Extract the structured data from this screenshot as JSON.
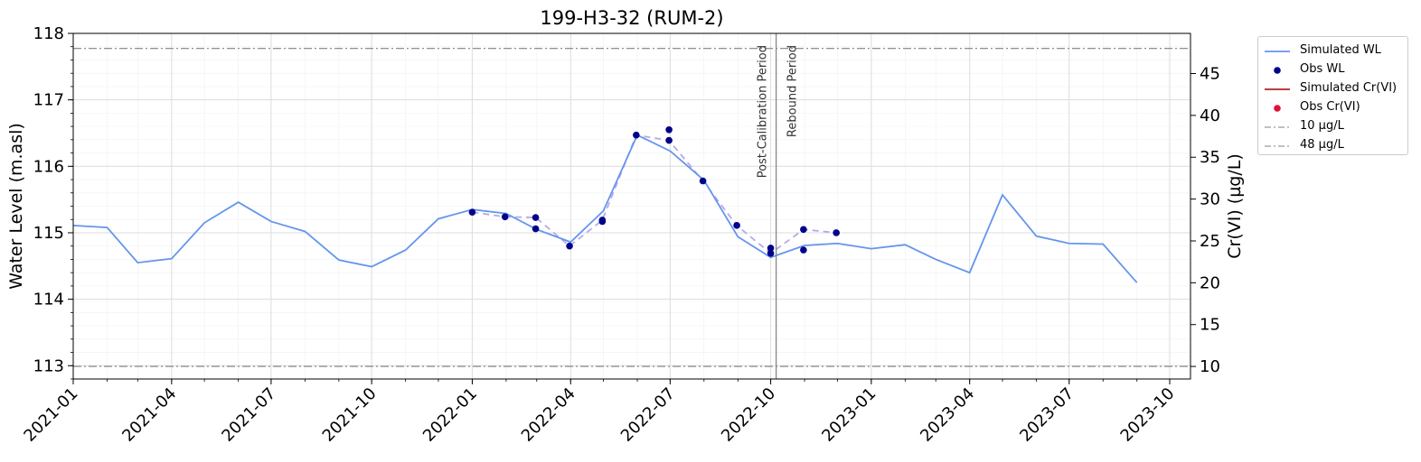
{
  "chart_data": {
    "type": "line",
    "title": "199-H3-32 (RUM-2)",
    "ylabel": "Water Level (m.asl)",
    "ylabel_right": "Cr(VI) (µg/L)",
    "xlim": [
      "2021-01-01",
      "2023-10-20"
    ],
    "ylim": [
      112.8,
      118.0
    ],
    "ylim_right": [
      8.5,
      49.8
    ],
    "x_ticks": [
      "2021-01",
      "2021-04",
      "2021-07",
      "2021-10",
      "2022-01",
      "2022-04",
      "2022-07",
      "2022-10",
      "2023-01",
      "2023-04",
      "2023-07",
      "2023-10"
    ],
    "y_ticks": [
      113,
      114,
      115,
      116,
      117,
      118
    ],
    "y_ticks_right": [
      10,
      15,
      20,
      25,
      30,
      35,
      40,
      45
    ],
    "grid": true,
    "legend_position": "outside-top-right",
    "series": [
      {
        "name": "Simulated WL",
        "color": "#6495ED",
        "x": [
          "2021-01-01",
          "2021-02-01",
          "2021-03-01",
          "2021-04-01",
          "2021-05-01",
          "2021-06-01",
          "2021-07-01",
          "2021-08-01",
          "2021-09-01",
          "2021-10-01",
          "2021-11-01",
          "2021-12-01",
          "2022-01-01",
          "2022-02-01",
          "2022-03-01",
          "2022-04-01",
          "2022-05-01",
          "2022-06-01",
          "2022-07-01",
          "2022-08-01",
          "2022-09-01",
          "2022-10-01",
          "2022-11-01",
          "2022-12-01",
          "2023-01-01",
          "2023-02-01",
          "2023-03-01",
          "2023-04-01",
          "2023-05-01",
          "2023-06-01",
          "2023-07-01",
          "2023-08-01",
          "2023-09-01"
        ],
        "y": [
          115.11,
          115.08,
          114.55,
          114.61,
          115.15,
          115.46,
          115.17,
          115.02,
          114.59,
          114.49,
          114.74,
          115.21,
          115.35,
          115.29,
          115.05,
          114.86,
          115.33,
          116.47,
          116.23,
          115.79,
          114.94,
          114.63,
          114.81,
          114.84,
          114.76,
          114.82,
          114.6,
          114.4,
          115.57,
          114.95,
          114.84,
          114.83,
          114.25
        ]
      },
      {
        "name": "Obs WL",
        "color": "#00008B",
        "x": [
          "2022-01-01",
          "2022-01-31",
          "2022-02-28",
          "2022-02-28",
          "2022-03-31",
          "2022-04-30",
          "2022-04-30",
          "2022-05-31",
          "2022-06-30",
          "2022-06-30",
          "2022-07-31",
          "2022-08-31",
          "2022-10-01",
          "2022-10-01",
          "2022-10-31",
          "2022-10-31",
          "2022-11-30"
        ],
        "y": [
          115.31,
          115.24,
          115.23,
          115.06,
          114.8,
          115.19,
          115.17,
          116.47,
          116.55,
          116.39,
          115.78,
          115.11,
          114.77,
          114.69,
          115.05,
          114.74,
          115.0
        ]
      },
      {
        "name": "Obs WL (dashed)",
        "color": "#B7A9E8",
        "x": [
          "2022-01-01",
          "2022-01-31",
          "2022-02-28",
          "2022-03-31",
          "2022-04-30",
          "2022-05-31",
          "2022-06-30",
          "2022-07-31",
          "2022-08-31",
          "2022-10-01",
          "2022-10-31",
          "2022-11-30"
        ],
        "y": [
          115.31,
          115.24,
          115.23,
          114.8,
          115.19,
          116.47,
          116.39,
          115.78,
          115.11,
          114.69,
          115.05,
          115.0
        ]
      },
      {
        "name": "Simulated Cr(VI)",
        "color": "#B22222",
        "x": [],
        "y": []
      },
      {
        "name": "Obs Cr(VI)",
        "color": "#DC143C",
        "x": [],
        "y": []
      }
    ],
    "hlines": [
      {
        "name": "10 µg/L",
        "value": 10,
        "axis": "right",
        "color": "#808080"
      },
      {
        "name": "48 µg/L",
        "value": 48,
        "axis": "right",
        "color": "#808080"
      }
    ],
    "vlines": [
      {
        "x": "2022-10-06",
        "color": "#808080"
      }
    ],
    "annotations": [
      {
        "text": "Post-Calibration Period",
        "x": "2022-10-06",
        "side": "left"
      },
      {
        "text": "Rebound Period",
        "x": "2022-10-06",
        "side": "right"
      }
    ]
  },
  "legend": {
    "items": [
      {
        "label": "Simulated WL",
        "kind": "line",
        "color": "#6495ED"
      },
      {
        "label": "Obs WL",
        "kind": "dot",
        "color": "#00008B"
      },
      {
        "label": "Simulated Cr(VI)",
        "kind": "line",
        "color": "#B22222"
      },
      {
        "label": "Obs Cr(VI)",
        "kind": "dot",
        "color": "#DC143C"
      },
      {
        "label": "10 µg/L",
        "kind": "dashdot",
        "color": "#808080"
      },
      {
        "label": "48 µg/L",
        "kind": "dashdot",
        "color": "#808080"
      }
    ]
  }
}
